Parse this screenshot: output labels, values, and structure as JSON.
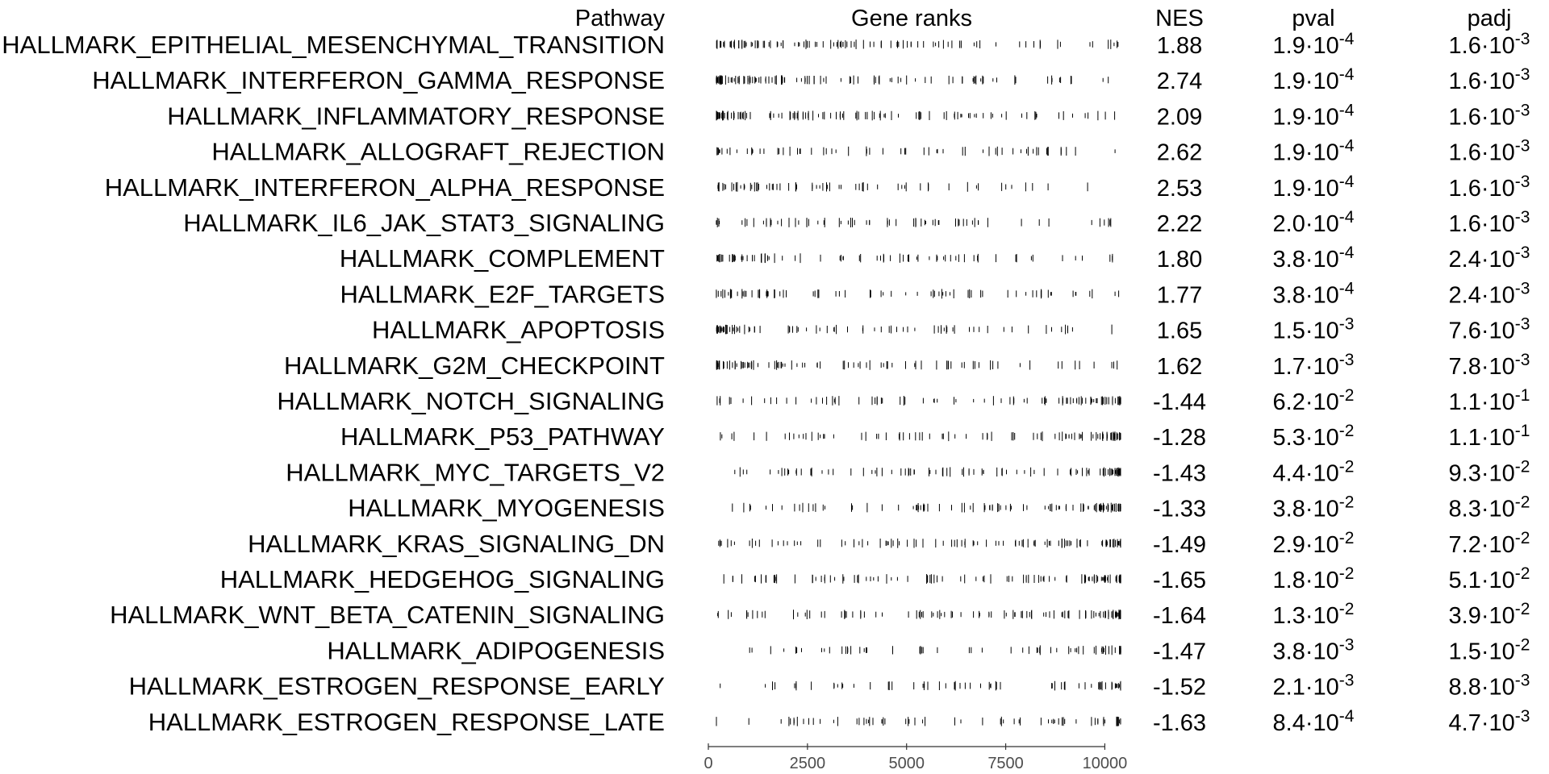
{
  "chart_data": {
    "type": "table",
    "headers": {
      "pathway": "Pathway",
      "gene_ranks": "Gene ranks",
      "nes": "NES",
      "pval": "pval",
      "padj": "padj"
    },
    "x_axis": {
      "range": [
        0,
        10500
      ],
      "ticks": [
        0,
        2500,
        5000,
        7500,
        10000
      ],
      "tick_labels": [
        "0",
        "2500",
        "5000",
        "7500",
        "10000"
      ]
    },
    "rows": [
      {
        "pathway": "HALLMARK_EPITHELIAL_MESENCHYMAL_TRANSITION",
        "nes": "1.88",
        "pval_mant": "1.9",
        "pval_exp": "-4",
        "padj_mant": "1.6",
        "padj_exp": "-3"
      },
      {
        "pathway": "HALLMARK_INTERFERON_GAMMA_RESPONSE",
        "nes": "2.74",
        "pval_mant": "1.9",
        "pval_exp": "-4",
        "padj_mant": "1.6",
        "padj_exp": "-3"
      },
      {
        "pathway": "HALLMARK_INFLAMMATORY_RESPONSE",
        "nes": "2.09",
        "pval_mant": "1.9",
        "pval_exp": "-4",
        "padj_mant": "1.6",
        "padj_exp": "-3"
      },
      {
        "pathway": "HALLMARK_ALLOGRAFT_REJECTION",
        "nes": "2.62",
        "pval_mant": "1.9",
        "pval_exp": "-4",
        "padj_mant": "1.6",
        "padj_exp": "-3"
      },
      {
        "pathway": "HALLMARK_INTERFERON_ALPHA_RESPONSE",
        "nes": "2.53",
        "pval_mant": "1.9",
        "pval_exp": "-4",
        "padj_mant": "1.6",
        "padj_exp": "-3"
      },
      {
        "pathway": "HALLMARK_IL6_JAK_STAT3_SIGNALING",
        "nes": "2.22",
        "pval_mant": "2.0",
        "pval_exp": "-4",
        "padj_mant": "1.6",
        "padj_exp": "-3"
      },
      {
        "pathway": "HALLMARK_COMPLEMENT",
        "nes": "1.80",
        "pval_mant": "3.8",
        "pval_exp": "-4",
        "padj_mant": "2.4",
        "padj_exp": "-3"
      },
      {
        "pathway": "HALLMARK_E2F_TARGETS",
        "nes": "1.77",
        "pval_mant": "3.8",
        "pval_exp": "-4",
        "padj_mant": "2.4",
        "padj_exp": "-3"
      },
      {
        "pathway": "HALLMARK_APOPTOSIS",
        "nes": "1.65",
        "pval_mant": "1.5",
        "pval_exp": "-3",
        "padj_mant": "7.6",
        "padj_exp": "-3"
      },
      {
        "pathway": "HALLMARK_G2M_CHECKPOINT",
        "nes": "1.62",
        "pval_mant": "1.7",
        "pval_exp": "-3",
        "padj_mant": "7.8",
        "padj_exp": "-3"
      },
      {
        "pathway": "HALLMARK_NOTCH_SIGNALING",
        "nes": "-1.44",
        "pval_mant": "6.2",
        "pval_exp": "-2",
        "padj_mant": "1.1",
        "padj_exp": "-1"
      },
      {
        "pathway": "HALLMARK_P53_PATHWAY",
        "nes": "-1.28",
        "pval_mant": "5.3",
        "pval_exp": "-2",
        "padj_mant": "1.1",
        "padj_exp": "-1"
      },
      {
        "pathway": "HALLMARK_MYC_TARGETS_V2",
        "nes": "-1.43",
        "pval_mant": "4.4",
        "pval_exp": "-2",
        "padj_mant": "9.3",
        "padj_exp": "-2"
      },
      {
        "pathway": "HALLMARK_MYOGENESIS",
        "nes": "-1.33",
        "pval_mant": "3.8",
        "pval_exp": "-2",
        "padj_mant": "8.3",
        "padj_exp": "-2"
      },
      {
        "pathway": "HALLMARK_KRAS_SIGNALING_DN",
        "nes": "-1.49",
        "pval_mant": "2.9",
        "pval_exp": "-2",
        "padj_mant": "7.2",
        "padj_exp": "-2"
      },
      {
        "pathway": "HALLMARK_HEDGEHOG_SIGNALING",
        "nes": "-1.65",
        "pval_mant": "1.8",
        "pval_exp": "-2",
        "padj_mant": "5.1",
        "padj_exp": "-2"
      },
      {
        "pathway": "HALLMARK_WNT_BETA_CATENIN_SIGNALING",
        "nes": "-1.64",
        "pval_mant": "1.3",
        "pval_exp": "-2",
        "padj_mant": "3.9",
        "padj_exp": "-2"
      },
      {
        "pathway": "HALLMARK_ADIPOGENESIS",
        "nes": "-1.47",
        "pval_mant": "3.8",
        "pval_exp": "-3",
        "padj_mant": "1.5",
        "padj_exp": "-2"
      },
      {
        "pathway": "HALLMARK_ESTROGEN_RESPONSE_EARLY",
        "nes": "-1.52",
        "pval_mant": "2.1",
        "pval_exp": "-3",
        "padj_mant": "8.8",
        "padj_exp": "-3"
      },
      {
        "pathway": "HALLMARK_ESTROGEN_RESPONSE_LATE",
        "nes": "-1.63",
        "pval_mant": "8.4",
        "pval_exp": "-4",
        "padj_mant": "4.7",
        "padj_exp": "-3"
      }
    ]
  }
}
